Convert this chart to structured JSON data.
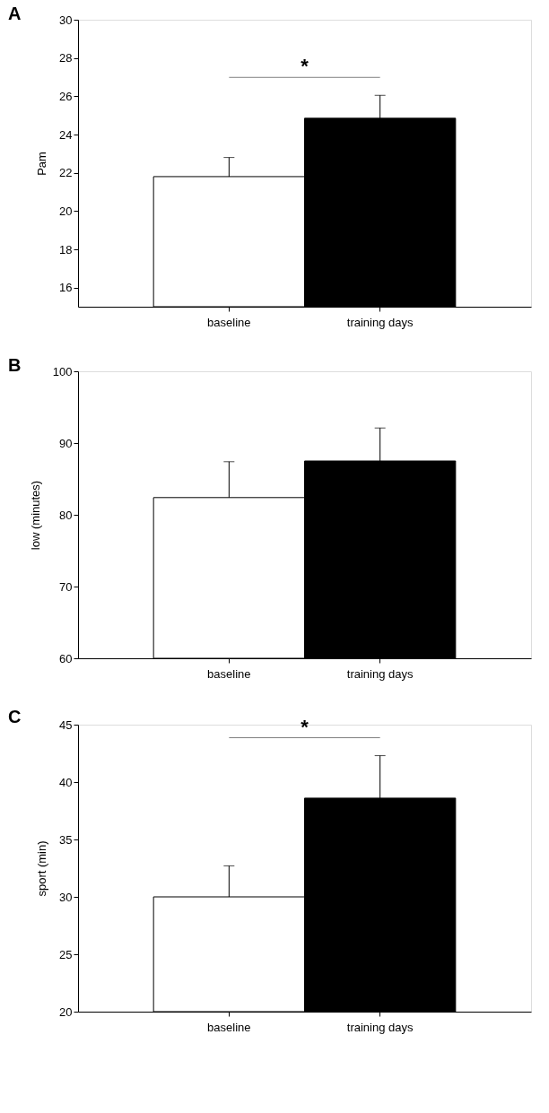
{
  "chart_data": [
    {
      "type": "bar",
      "title": "A",
      "ylabel": "Pam",
      "categories": [
        "baseline",
        "training days"
      ],
      "values": [
        21.8,
        24.85
      ],
      "colors": [
        "#ffffff",
        "#000000"
      ],
      "errors": [
        1.0,
        1.2
      ],
      "ylim": [
        15,
        30
      ],
      "yticks": [
        16,
        18,
        20,
        22,
        24,
        26,
        28,
        30
      ],
      "annotations": [
        "*"
      ]
    },
    {
      "type": "bar",
      "title": "B",
      "ylabel": "low (minutes)",
      "categories": [
        "baseline",
        "training days"
      ],
      "values": [
        82.4,
        87.5
      ],
      "colors": [
        "#ffffff",
        "#000000"
      ],
      "errors": [
        5.0,
        4.6
      ],
      "ylim": [
        60,
        100
      ],
      "yticks": [
        60,
        70,
        80,
        90,
        100
      ]
    },
    {
      "type": "bar",
      "title": "C",
      "ylabel": "sport (min)",
      "categories": [
        "baseline",
        "training days"
      ],
      "values": [
        30.0,
        38.6
      ],
      "colors": [
        "#ffffff",
        "#000000"
      ],
      "errors": [
        2.7,
        3.7
      ],
      "ylim": [
        20,
        45
      ],
      "yticks": [
        20,
        25,
        30,
        35,
        40,
        45
      ],
      "annotations": [
        "*"
      ]
    }
  ]
}
